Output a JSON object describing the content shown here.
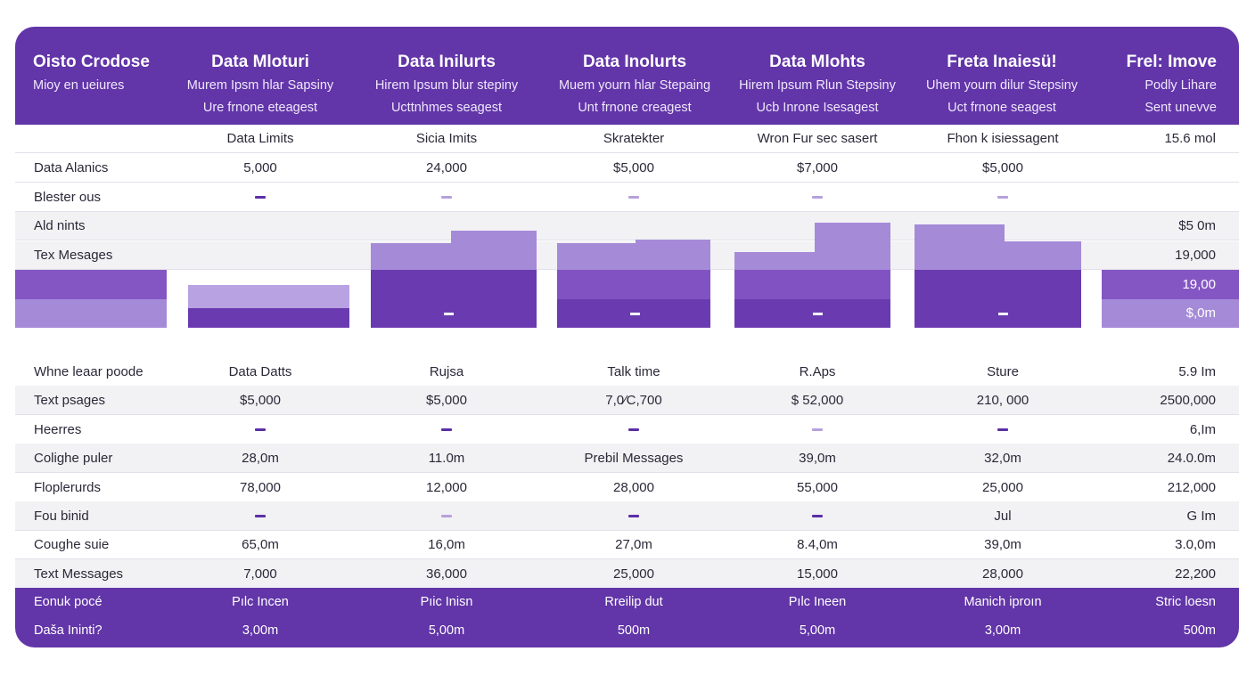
{
  "header": {
    "columns": [
      {
        "title": "Oisto Crodose",
        "sub1": "Mioy en ueiures",
        "sub2": ""
      },
      {
        "title": "Data Mloturi",
        "sub1": "Murem Ipsm hlar Sapsiny",
        "sub2": "Ure frnone eteagest"
      },
      {
        "title": "Data Inilurts",
        "sub1": "Hirem Ipsum blur stepiny",
        "sub2": "Ucttnhmes seagest"
      },
      {
        "title": "Data Inolurts",
        "sub1": "Muem yourn hlar Stepaing",
        "sub2": "Unt frnone creagest"
      },
      {
        "title": "Data Mlohts",
        "sub1": "Hirem Ipsum Rlun Stepsiny",
        "sub2": "Ucb Inrone Isesagest"
      },
      {
        "title": "Freta Inaiesü!",
        "sub1": "Uhem yourn dilur Stepsiny",
        "sub2": "Uct frnone seagest"
      },
      {
        "title": "Frel: Imove",
        "sub1": "Podly Lihare",
        "sub2": "Sent unevve"
      }
    ]
  },
  "table_top": [
    {
      "label": "",
      "cells": [
        "Data Limits",
        "Sicia Imits",
        "Skratekter",
        "Wron Fur sec sasert",
        "Fhon k isiessagent",
        "15.6 mol"
      ]
    },
    {
      "label": "Data Alanics",
      "cells": [
        "5,000",
        "24,000",
        "$5,000",
        "$7,000",
        "$5,000",
        ""
      ]
    },
    {
      "label": "Blester ous",
      "cells": [
        "dash",
        "dash-light",
        "dash-light",
        "dash-light",
        "dash-light",
        ""
      ]
    },
    {
      "label": "Ald nints",
      "cells": [
        "",
        "",
        "",
        "",
        "",
        "$5 0m"
      ]
    },
    {
      "label": "Tex Mesages",
      "cells": [
        "",
        "",
        "",
        "",
        "",
        "19,000"
      ]
    }
  ],
  "chart_values": {
    "row1": "19,00",
    "row2": "$,0m"
  },
  "table_bottom": [
    {
      "label": "Whne leaar poode",
      "cells": [
        "Data Datts",
        "Rujsa",
        "Talk time",
        "R.Aps",
        "Sture",
        "5.9 Im"
      ]
    },
    {
      "label": "Text psages",
      "cells": [
        "$5,000",
        "$5,000",
        "7,0⁄C,700",
        "$ 52,000",
        "210, 000",
        "2500,000"
      ]
    },
    {
      "label": "Heerres",
      "cells": [
        "dash",
        "dash",
        "dash",
        "dash-light",
        "dash",
        "6,Im"
      ]
    },
    {
      "label": "Colighe puler",
      "cells": [
        "28,0m",
        "11.0m",
        "Prebil Messages",
        "39,0m",
        "32,0m",
        "24.0.0m"
      ]
    },
    {
      "label": "Floplerurds",
      "cells": [
        "78,000",
        "12,000",
        "28,000",
        "55,000",
        "25,000",
        "212,000"
      ]
    },
    {
      "label": "Fou binid",
      "cells": [
        "dash",
        "dash-light",
        "dash",
        "dash",
        "Jul",
        "G Im"
      ]
    },
    {
      "label": "Coughe suie",
      "cells": [
        "65,0m",
        "16,0m",
        "27,0m",
        "8.4,0m",
        "39,0m",
        "3.0,0m"
      ]
    },
    {
      "label": "Text Messages",
      "cells": [
        "7,000",
        "36,000",
        "25,000",
        "15,000",
        "28,000",
        "22,200"
      ]
    }
  ],
  "footer": [
    {
      "label": "Eonuk pocé",
      "cells": [
        "Pılc Incen",
        "Pıic Inisn",
        "Rreilip dut",
        "Pılc Ineen",
        "Manich iproın",
        "Stric loesn"
      ]
    },
    {
      "label": "Daša Ininti?",
      "cells": [
        "3,00m",
        "5,00m",
        "500m",
        "5,00m",
        "3,00m",
        "500m"
      ]
    }
  ],
  "colors": {
    "primary": "#6235a8",
    "bar_dark": "#6a3bb0",
    "bar_light": "#a58ad8",
    "dash": "#5b2fa6"
  }
}
